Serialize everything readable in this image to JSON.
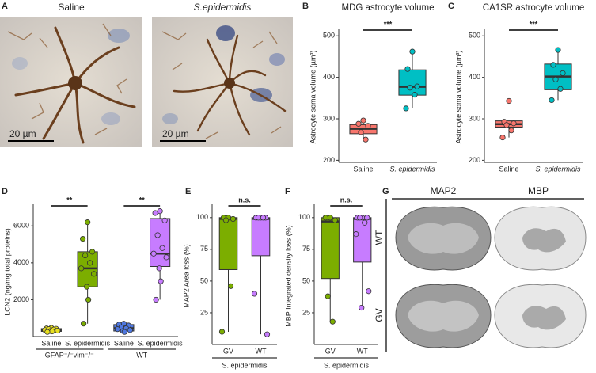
{
  "figure_a": {
    "panel": "A",
    "images": [
      {
        "label": "Saline",
        "scale_bar": "20 µm"
      },
      {
        "label": "S.epidermidis",
        "scale_bar": "20 µm"
      }
    ]
  },
  "chart_data": [
    {
      "type": "box",
      "panel": "B",
      "title": "MDG astrocyte volume",
      "ylabel": "Astrocyte soma volume (µm³)",
      "categories": [
        "Saline",
        "S. epidermidis"
      ],
      "ylim": [
        195,
        510
      ],
      "yticks": [
        200,
        300,
        400,
        500
      ],
      "annotations": [
        "***"
      ],
      "boxes": [
        {
          "color": "#f8766d",
          "low": 250,
          "q1": 264,
          "median": 276,
          "q3": 286,
          "high": 296,
          "points": [
            296,
            288,
            283,
            268,
            250
          ]
        },
        {
          "color": "#00bfc4",
          "low": 325,
          "q1": 357,
          "median": 377,
          "q3": 418,
          "high": 462,
          "points": [
            462,
            420,
            378,
            375,
            358,
            325
          ]
        }
      ]
    },
    {
      "type": "box",
      "panel": "C",
      "title": "CA1SR astrocyte volume",
      "ylabel": "Astrocyte soma volume (µm³)",
      "categories": [
        "Saline",
        "S. epidermidis"
      ],
      "ylim": [
        195,
        510
      ],
      "yticks": [
        200,
        300,
        400,
        500
      ],
      "annotations": [
        "***"
      ],
      "boxes": [
        {
          "color": "#f8766d",
          "low": 255,
          "q1": 280,
          "median": 287,
          "q3": 295,
          "high": 295,
          "points": [
            343,
            293,
            289,
            285,
            272,
            255
          ]
        },
        {
          "color": "#00bfc4",
          "low": 345,
          "q1": 370,
          "median": 402,
          "q3": 432,
          "high": 466,
          "points": [
            466,
            430,
            410,
            395,
            372,
            345
          ]
        }
      ]
    },
    {
      "type": "box",
      "panel": "D",
      "ylabel": "LCN2 (ng/mg total proteins)",
      "categories": [
        "Saline",
        "S. epidermidis",
        "Saline",
        "S. epidermidis"
      ],
      "groups": [
        "GFAP⁻/⁻vim⁻/⁻",
        "WT"
      ],
      "ylim": [
        0,
        7000
      ],
      "yticks": [
        2000,
        4000,
        6000
      ],
      "annotations": [
        "**",
        "**"
      ],
      "boxes": [
        {
          "color": "#e8e020",
          "low": 250,
          "q1": 280,
          "median": 350,
          "q3": 430,
          "high": 470,
          "points": [
            470,
            440,
            420,
            400,
            380,
            350,
            320,
            300,
            280,
            250
          ]
        },
        {
          "color": "#7cae00",
          "low": 700,
          "q1": 2700,
          "median": 3700,
          "q3": 4600,
          "high": 6200,
          "points": [
            6200,
            5300,
            4600,
            4400,
            4000,
            3700,
            3400,
            2700,
            2000,
            700
          ]
        },
        {
          "color": "#4f78e0",
          "low": 250,
          "q1": 300,
          "median": 450,
          "q3": 650,
          "high": 700,
          "points": [
            700,
            650,
            600,
            500,
            450,
            400,
            350,
            300,
            250
          ]
        },
        {
          "color": "#c77cff",
          "low": 2000,
          "q1": 3800,
          "median": 4500,
          "q3": 6400,
          "high": 6800,
          "points": [
            6800,
            6700,
            6300,
            5500,
            4800,
            4500,
            4300,
            3700,
            3000,
            2000
          ]
        }
      ]
    },
    {
      "type": "box",
      "panel": "E",
      "ylabel": "MAP2 Area loss (%)",
      "xlabel": "S. epidermidis",
      "categories": [
        "GV",
        "WT"
      ],
      "ylim": [
        0,
        108
      ],
      "yticks": [
        25,
        50,
        75,
        100
      ],
      "annotations": [
        "n.s."
      ],
      "boxes": [
        {
          "color": "#7cae00",
          "low": 10,
          "q1": 59,
          "median": 99,
          "q3": 100,
          "high": 100,
          "points": [
            100,
            100,
            99,
            98,
            46,
            10
          ]
        },
        {
          "color": "#c77cff",
          "low": 8,
          "q1": 70,
          "median": 99,
          "q3": 100,
          "high": 100,
          "points": [
            100,
            100,
            100,
            100,
            100,
            40,
            8
          ]
        }
      ]
    },
    {
      "type": "box",
      "panel": "F",
      "ylabel": "MBP Integrated density loss (%)",
      "xlabel": "S. epidermidis",
      "categories": [
        "GV",
        "WT"
      ],
      "ylim": [
        0,
        108
      ],
      "yticks": [
        25,
        50,
        75,
        100
      ],
      "annotations": [
        "n.s."
      ],
      "boxes": [
        {
          "color": "#7cae00",
          "low": 18,
          "q1": 52,
          "median": 97,
          "q3": 100,
          "high": 100,
          "points": [
            100,
            100,
            98,
            38,
            18
          ]
        },
        {
          "color": "#c77cff",
          "low": 29,
          "q1": 65,
          "median": 99,
          "q3": 100,
          "high": 100,
          "points": [
            100,
            100,
            100,
            100,
            96,
            87,
            42,
            29
          ]
        }
      ]
    }
  ],
  "figure_g": {
    "panel": "G",
    "columns": [
      "MAP2",
      "MBP"
    ],
    "rows": [
      "WT",
      "GV"
    ]
  }
}
